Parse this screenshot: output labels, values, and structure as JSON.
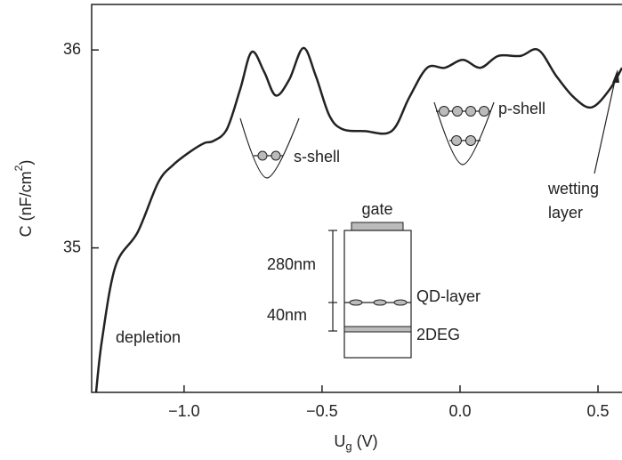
{
  "chart_data": {
    "type": "line",
    "x_label": {
      "main": "U",
      "sub": "g",
      "rest": " (V)"
    },
    "y_label": {
      "main": "C (nF/cm",
      "sup": "2",
      "rest": ")"
    },
    "x": [
      -1.319,
      -1.297,
      -1.248,
      -1.168,
      -1.094,
      -1.039,
      -0.974,
      -0.926,
      -0.894,
      -0.845,
      -0.797,
      -0.755,
      -0.71,
      -0.668,
      -0.619,
      -0.568,
      -0.523,
      -0.474,
      -0.426,
      -0.345,
      -0.248,
      -0.184,
      -0.119,
      -0.055,
      0.01,
      0.074,
      0.139,
      0.219,
      0.284,
      0.348,
      0.413,
      0.477,
      0.542,
      0.587
    ],
    "series": [
      {
        "color": "#222222",
        "values": [
          34.27,
          34.54,
          34.91,
          35.08,
          35.33,
          35.42,
          35.49,
          35.53,
          35.54,
          35.6,
          35.8,
          35.99,
          35.89,
          35.77,
          35.85,
          36.01,
          35.87,
          35.67,
          35.6,
          35.59,
          35.59,
          35.76,
          35.91,
          35.91,
          35.95,
          35.91,
          35.97,
          35.97,
          36.0,
          35.87,
          35.76,
          35.71,
          35.8,
          35.91
        ]
      }
    ],
    "xlim": [
      -1.335,
      0.587
    ],
    "ylim": [
      34.27,
      36.23
    ],
    "xticks": [
      {
        "value": -1,
        "label": "−1.0"
      },
      {
        "value": -0.5,
        "label": "−0.5"
      },
      {
        "value": 0,
        "label": "0.0"
      },
      {
        "value": 0.5,
        "label": "0.5"
      }
    ],
    "yticks": [
      35,
      36
    ],
    "grid": false,
    "annotations": {
      "depletion": "depletion",
      "s_shell": "s-shell",
      "p_shell": "p-shell",
      "wetting": [
        "wetting",
        "layer"
      ]
    },
    "inset": {
      "gate": "gate",
      "d1": "280nm",
      "d2": "40nm",
      "qd": "QD-layer",
      "deg": "2DEG"
    }
  }
}
